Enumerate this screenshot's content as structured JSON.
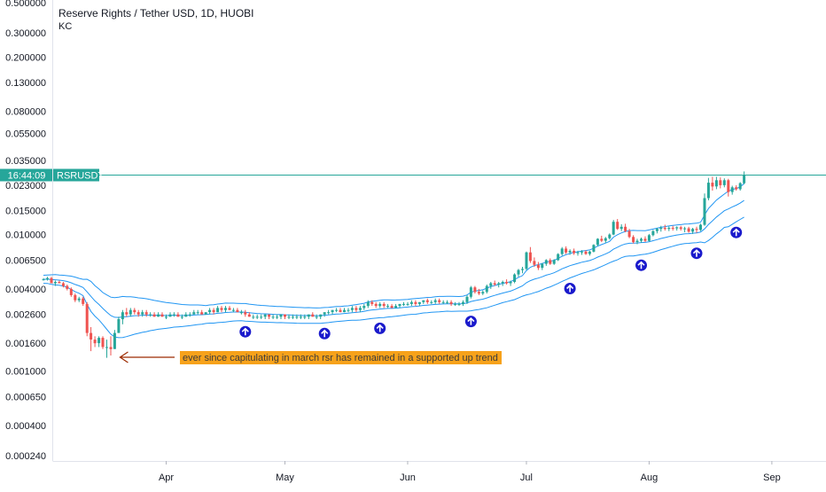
{
  "chart_data": {
    "type": "candlestick",
    "title": "Reserve Rights / Tether USD, 1D, HUOBI",
    "indicator": "KC",
    "symbol_label": "RSRUSDT",
    "time_label": "16:44:09",
    "y_scale": "log",
    "y_ticks": [
      "0.500000",
      "0.300000",
      "0.200000",
      "0.130000",
      "0.080000",
      "0.055000",
      "0.035000",
      "0.023000",
      "0.015000",
      "0.010000",
      "0.006500",
      "0.004000",
      "0.002600",
      "0.001600",
      "0.001000",
      "0.000650",
      "0.000400",
      "0.000240"
    ],
    "x_ticks": [
      "Apr",
      "May",
      "Jun",
      "Jul",
      "Aug",
      "Sep"
    ],
    "annotation": "ever since capitulating in march rsr has remained in a supported up trend",
    "last_price_line": 0.0275,
    "colors": {
      "up": "#26a69a",
      "down": "#ef5350",
      "keltner": "#2196f3",
      "annotation_bg": "#f7a21b",
      "arrow": "#9c2a00",
      "signal": "#1a1acc",
      "price_line": "#26a69a"
    },
    "ohlc": [
      [
        "2020-03-01",
        0.0047,
        0.0048,
        0.0046,
        0.0047
      ],
      [
        "2020-03-02",
        0.0047,
        0.0049,
        0.0046,
        0.0048
      ],
      [
        "2020-03-03",
        0.0048,
        0.0049,
        0.0044,
        0.0044
      ],
      [
        "2020-03-04",
        0.0044,
        0.0046,
        0.0042,
        0.0045
      ],
      [
        "2020-03-05",
        0.0045,
        0.0046,
        0.0044,
        0.0044
      ],
      [
        "2020-03-06",
        0.0044,
        0.0045,
        0.0041,
        0.0042
      ],
      [
        "2020-03-07",
        0.0042,
        0.0043,
        0.0039,
        0.004
      ],
      [
        "2020-03-08",
        0.004,
        0.0041,
        0.0035,
        0.0036
      ],
      [
        "2020-03-09",
        0.0036,
        0.0037,
        0.0032,
        0.0033
      ],
      [
        "2020-03-10",
        0.0033,
        0.0035,
        0.0032,
        0.0034
      ],
      [
        "2020-03-11",
        0.0034,
        0.0035,
        0.003,
        0.0031
      ],
      [
        "2020-03-12",
        0.0031,
        0.0032,
        0.0018,
        0.0019
      ],
      [
        "2020-03-13",
        0.0019,
        0.0021,
        0.0014,
        0.0017
      ],
      [
        "2020-03-14",
        0.0017,
        0.0018,
        0.0015,
        0.0016
      ],
      [
        "2020-03-15",
        0.0016,
        0.0018,
        0.0015,
        0.00175
      ],
      [
        "2020-03-16",
        0.00175,
        0.0018,
        0.00145,
        0.0015
      ],
      [
        "2020-03-17",
        0.0015,
        0.0017,
        0.00125,
        0.0015
      ],
      [
        "2020-03-18",
        0.0015,
        0.0018,
        0.0013,
        0.00145
      ],
      [
        "2020-03-19",
        0.00145,
        0.002,
        0.00145,
        0.0019
      ],
      [
        "2020-03-20",
        0.0019,
        0.0025,
        0.0019,
        0.0024
      ],
      [
        "2020-03-21",
        0.0024,
        0.0028,
        0.0022,
        0.0027
      ],
      [
        "2020-03-22",
        0.0027,
        0.0029,
        0.0025,
        0.0026
      ],
      [
        "2020-03-23",
        0.0026,
        0.0029,
        0.0025,
        0.0028
      ],
      [
        "2020-03-24",
        0.0028,
        0.0029,
        0.0026,
        0.0027
      ],
      [
        "2020-03-25",
        0.0027,
        0.0028,
        0.0025,
        0.0026
      ],
      [
        "2020-03-26",
        0.0026,
        0.0028,
        0.0025,
        0.0027
      ],
      [
        "2020-03-27",
        0.0027,
        0.0028,
        0.0025,
        0.0026
      ],
      [
        "2020-03-28",
        0.0026,
        0.0027,
        0.0025,
        0.0026
      ],
      [
        "2020-03-29",
        0.0026,
        0.0027,
        0.0025,
        0.0025
      ],
      [
        "2020-03-30",
        0.0025,
        0.0027,
        0.0025,
        0.0026
      ],
      [
        "2020-03-31",
        0.0026,
        0.0027,
        0.0025,
        0.0025
      ],
      [
        "2020-04-01",
        0.0025,
        0.0026,
        0.0024,
        0.0025
      ],
      [
        "2020-04-02",
        0.0025,
        0.0027,
        0.0025,
        0.0026
      ],
      [
        "2020-04-03",
        0.0026,
        0.0027,
        0.0025,
        0.0026
      ],
      [
        "2020-04-04",
        0.0026,
        0.0027,
        0.0025,
        0.0025
      ],
      [
        "2020-04-05",
        0.0025,
        0.0026,
        0.0024,
        0.0025
      ],
      [
        "2020-04-06",
        0.0025,
        0.0027,
        0.0025,
        0.0026
      ],
      [
        "2020-04-07",
        0.0026,
        0.0027,
        0.0025,
        0.0026
      ],
      [
        "2020-04-08",
        0.0026,
        0.0028,
        0.0026,
        0.0027
      ],
      [
        "2020-04-09",
        0.0027,
        0.0028,
        0.0026,
        0.0027
      ],
      [
        "2020-04-10",
        0.0027,
        0.0028,
        0.0026,
        0.0026
      ],
      [
        "2020-04-11",
        0.0026,
        0.0027,
        0.0026,
        0.0027
      ],
      [
        "2020-04-12",
        0.0027,
        0.0029,
        0.0026,
        0.0028
      ],
      [
        "2020-04-13",
        0.0028,
        0.0029,
        0.0026,
        0.0027
      ],
      [
        "2020-04-14",
        0.0027,
        0.003,
        0.0027,
        0.0029
      ],
      [
        "2020-04-15",
        0.0029,
        0.003,
        0.0027,
        0.0028
      ],
      [
        "2020-04-16",
        0.0028,
        0.003,
        0.0027,
        0.0029
      ],
      [
        "2020-04-17",
        0.0029,
        0.003,
        0.0028,
        0.0028
      ],
      [
        "2020-04-18",
        0.0028,
        0.0029,
        0.0027,
        0.0028
      ],
      [
        "2020-04-19",
        0.0028,
        0.0029,
        0.0027,
        0.0027
      ],
      [
        "2020-04-20",
        0.0027,
        0.0028,
        0.0026,
        0.0027
      ],
      [
        "2020-04-21",
        0.0027,
        0.0028,
        0.0025,
        0.0026
      ],
      [
        "2020-04-22",
        0.0026,
        0.0027,
        0.0025,
        0.0025
      ],
      [
        "2020-04-23",
        0.0025,
        0.0026,
        0.0024,
        0.0025
      ],
      [
        "2020-04-24",
        0.0025,
        0.0026,
        0.0024,
        0.0025
      ],
      [
        "2020-04-25",
        0.0025,
        0.0026,
        0.0024,
        0.0025
      ],
      [
        "2020-04-26",
        0.0025,
        0.0026,
        0.0024,
        0.0026
      ],
      [
        "2020-04-27",
        0.0026,
        0.0026,
        0.0024,
        0.0025
      ],
      [
        "2020-04-28",
        0.0025,
        0.0026,
        0.0024,
        0.0025
      ],
      [
        "2020-04-29",
        0.0025,
        0.0026,
        0.0024,
        0.0025
      ],
      [
        "2020-04-30",
        0.0025,
        0.0026,
        0.0024,
        0.0026
      ],
      [
        "2020-05-01",
        0.0026,
        0.0026,
        0.0024,
        0.0025
      ],
      [
        "2020-05-02",
        0.0025,
        0.0026,
        0.0024,
        0.0025
      ],
      [
        "2020-05-03",
        0.0025,
        0.0026,
        0.0024,
        0.0025
      ],
      [
        "2020-05-04",
        0.0025,
        0.0026,
        0.0024,
        0.0025
      ],
      [
        "2020-05-05",
        0.0025,
        0.0026,
        0.0024,
        0.0025
      ],
      [
        "2020-05-06",
        0.0025,
        0.0026,
        0.0024,
        0.0025
      ],
      [
        "2020-05-07",
        0.0025,
        0.0026,
        0.0024,
        0.0026
      ],
      [
        "2020-05-08",
        0.0026,
        0.0027,
        0.0025,
        0.0025
      ],
      [
        "2020-05-09",
        0.0025,
        0.0026,
        0.0024,
        0.0025
      ],
      [
        "2020-05-10",
        0.0025,
        0.0026,
        0.0024,
        0.0026
      ],
      [
        "2020-05-11",
        0.0026,
        0.0027,
        0.0025,
        0.0027
      ],
      [
        "2020-05-12",
        0.0027,
        0.0028,
        0.0026,
        0.0027
      ],
      [
        "2020-05-13",
        0.0027,
        0.0028,
        0.0026,
        0.0028
      ],
      [
        "2020-05-14",
        0.0028,
        0.0029,
        0.0027,
        0.0028
      ],
      [
        "2020-05-15",
        0.0028,
        0.0029,
        0.0027,
        0.0027
      ],
      [
        "2020-05-16",
        0.0027,
        0.0029,
        0.0027,
        0.0028
      ],
      [
        "2020-05-17",
        0.0028,
        0.0029,
        0.0027,
        0.0028
      ],
      [
        "2020-05-18",
        0.0028,
        0.003,
        0.0027,
        0.0029
      ],
      [
        "2020-05-19",
        0.0029,
        0.003,
        0.0027,
        0.0028
      ],
      [
        "2020-05-20",
        0.0028,
        0.003,
        0.0027,
        0.0029
      ],
      [
        "2020-05-21",
        0.0029,
        0.0031,
        0.0028,
        0.003
      ],
      [
        "2020-05-22",
        0.003,
        0.0033,
        0.0029,
        0.0032
      ],
      [
        "2020-05-23",
        0.0032,
        0.0033,
        0.003,
        0.0031
      ],
      [
        "2020-05-24",
        0.0031,
        0.0032,
        0.0029,
        0.003
      ],
      [
        "2020-05-25",
        0.003,
        0.0032,
        0.0029,
        0.0031
      ],
      [
        "2020-05-26",
        0.0031,
        0.0032,
        0.0029,
        0.003
      ],
      [
        "2020-05-27",
        0.003,
        0.0031,
        0.0029,
        0.003
      ],
      [
        "2020-05-28",
        0.003,
        0.0031,
        0.0029,
        0.0029
      ],
      [
        "2020-05-29",
        0.0029,
        0.0031,
        0.0029,
        0.003
      ],
      [
        "2020-05-30",
        0.003,
        0.0031,
        0.0029,
        0.0031
      ],
      [
        "2020-05-31",
        0.0031,
        0.0032,
        0.003,
        0.0031
      ],
      [
        "2020-06-01",
        0.0031,
        0.0032,
        0.003,
        0.0031
      ],
      [
        "2020-06-02",
        0.0031,
        0.0033,
        0.003,
        0.0032
      ],
      [
        "2020-06-03",
        0.0032,
        0.0033,
        0.003,
        0.0031
      ],
      [
        "2020-06-04",
        0.0031,
        0.0032,
        0.003,
        0.0032
      ],
      [
        "2020-06-05",
        0.0032,
        0.0033,
        0.0031,
        0.0033
      ],
      [
        "2020-06-06",
        0.0033,
        0.0034,
        0.0031,
        0.0032
      ],
      [
        "2020-06-07",
        0.0032,
        0.0033,
        0.0031,
        0.0032
      ],
      [
        "2020-06-08",
        0.0032,
        0.0034,
        0.0031,
        0.0033
      ],
      [
        "2020-06-09",
        0.0033,
        0.0034,
        0.0031,
        0.0032
      ],
      [
        "2020-06-10",
        0.0032,
        0.0033,
        0.0031,
        0.0032
      ],
      [
        "2020-06-11",
        0.0032,
        0.0033,
        0.0031,
        0.0032
      ],
      [
        "2020-06-12",
        0.0032,
        0.0033,
        0.003,
        0.0031
      ],
      [
        "2020-06-13",
        0.0031,
        0.0032,
        0.003,
        0.0031
      ],
      [
        "2020-06-14",
        0.0031,
        0.0032,
        0.003,
        0.0031
      ],
      [
        "2020-06-15",
        0.0031,
        0.0033,
        0.003,
        0.0032
      ],
      [
        "2020-06-16",
        0.0032,
        0.0036,
        0.0031,
        0.0035
      ],
      [
        "2020-06-17",
        0.0035,
        0.0042,
        0.0034,
        0.0041
      ],
      [
        "2020-06-18",
        0.0041,
        0.0042,
        0.0037,
        0.0038
      ],
      [
        "2020-06-19",
        0.0038,
        0.004,
        0.0036,
        0.0037
      ],
      [
        "2020-06-20",
        0.0037,
        0.0039,
        0.0036,
        0.0038
      ],
      [
        "2020-06-21",
        0.0038,
        0.0043,
        0.0037,
        0.0042
      ],
      [
        "2020-06-22",
        0.0042,
        0.0045,
        0.004,
        0.0044
      ],
      [
        "2020-06-23",
        0.0044,
        0.0046,
        0.0042,
        0.0043
      ],
      [
        "2020-06-24",
        0.0043,
        0.0045,
        0.0041,
        0.0044
      ],
      [
        "2020-06-25",
        0.0044,
        0.0046,
        0.0042,
        0.0045
      ],
      [
        "2020-06-26",
        0.0045,
        0.0047,
        0.0043,
        0.0044
      ],
      [
        "2020-06-27",
        0.0044,
        0.0046,
        0.0042,
        0.0045
      ],
      [
        "2020-06-28",
        0.0045,
        0.0052,
        0.0044,
        0.0051
      ],
      [
        "2020-06-29",
        0.0051,
        0.0056,
        0.0049,
        0.0055
      ],
      [
        "2020-06-30",
        0.0055,
        0.0058,
        0.0052,
        0.0056
      ],
      [
        "2020-07-01",
        0.0056,
        0.0075,
        0.0055,
        0.0074
      ],
      [
        "2020-07-02",
        0.0074,
        0.0081,
        0.0062,
        0.0064
      ],
      [
        "2020-07-03",
        0.0064,
        0.0068,
        0.0058,
        0.006
      ],
      [
        "2020-07-04",
        0.006,
        0.0063,
        0.0055,
        0.0057
      ],
      [
        "2020-07-05",
        0.0057,
        0.0062,
        0.0055,
        0.0061
      ],
      [
        "2020-07-06",
        0.0061,
        0.0066,
        0.0059,
        0.0065
      ],
      [
        "2020-07-07",
        0.0065,
        0.0067,
        0.006,
        0.0061
      ],
      [
        "2020-07-08",
        0.0061,
        0.0066,
        0.006,
        0.0065
      ],
      [
        "2020-07-09",
        0.0065,
        0.0073,
        0.0064,
        0.0072
      ],
      [
        "2020-07-10",
        0.0072,
        0.0081,
        0.007,
        0.0079
      ],
      [
        "2020-07-11",
        0.0079,
        0.0082,
        0.0072,
        0.0074
      ],
      [
        "2020-07-12",
        0.0074,
        0.0078,
        0.0071,
        0.0076
      ],
      [
        "2020-07-13",
        0.0076,
        0.0079,
        0.0071,
        0.0073
      ],
      [
        "2020-07-14",
        0.0073,
        0.0076,
        0.007,
        0.0074
      ],
      [
        "2020-07-15",
        0.0074,
        0.0077,
        0.0071,
        0.0075
      ],
      [
        "2020-07-16",
        0.0075,
        0.0077,
        0.0071,
        0.0072
      ],
      [
        "2020-07-17",
        0.0072,
        0.0076,
        0.007,
        0.0075
      ],
      [
        "2020-07-18",
        0.0075,
        0.0085,
        0.0074,
        0.0084
      ],
      [
        "2020-07-19",
        0.0084,
        0.0094,
        0.0082,
        0.0093
      ],
      [
        "2020-07-20",
        0.0093,
        0.0098,
        0.0088,
        0.009
      ],
      [
        "2020-07-21",
        0.009,
        0.0096,
        0.0087,
        0.0094
      ],
      [
        "2020-07-22",
        0.0094,
        0.0102,
        0.0092,
        0.01
      ],
      [
        "2020-07-23",
        0.01,
        0.0128,
        0.0099,
        0.0124
      ],
      [
        "2020-07-24",
        0.0124,
        0.013,
        0.0108,
        0.011
      ],
      [
        "2020-07-25",
        0.011,
        0.0119,
        0.0106,
        0.0114
      ],
      [
        "2020-07-26",
        0.0114,
        0.012,
        0.0104,
        0.0106
      ],
      [
        "2020-07-27",
        0.0106,
        0.011,
        0.0094,
        0.0096
      ],
      [
        "2020-07-28",
        0.0096,
        0.0099,
        0.0086,
        0.0088
      ],
      [
        "2020-07-29",
        0.0088,
        0.0093,
        0.0085,
        0.009
      ],
      [
        "2020-07-30",
        0.009,
        0.0095,
        0.0087,
        0.0093
      ],
      [
        "2020-07-31",
        0.0093,
        0.0097,
        0.0088,
        0.009
      ],
      [
        "2020-08-01",
        0.009,
        0.0101,
        0.0089,
        0.0099
      ],
      [
        "2020-08-02",
        0.0099,
        0.0108,
        0.0097,
        0.0106
      ],
      [
        "2020-08-03",
        0.0106,
        0.0112,
        0.0102,
        0.011
      ],
      [
        "2020-08-04",
        0.011,
        0.0116,
        0.0105,
        0.0112
      ],
      [
        "2020-08-05",
        0.0112,
        0.0118,
        0.0107,
        0.011
      ],
      [
        "2020-08-06",
        0.011,
        0.0115,
        0.0106,
        0.0112
      ],
      [
        "2020-08-07",
        0.0112,
        0.0116,
        0.0107,
        0.0111
      ],
      [
        "2020-08-08",
        0.0111,
        0.0115,
        0.0107,
        0.0113
      ],
      [
        "2020-08-09",
        0.0113,
        0.0116,
        0.0107,
        0.011
      ],
      [
        "2020-08-10",
        0.011,
        0.0114,
        0.0104,
        0.0111
      ],
      [
        "2020-08-11",
        0.0111,
        0.0114,
        0.0103,
        0.0105
      ],
      [
        "2020-08-12",
        0.0105,
        0.0112,
        0.0101,
        0.011
      ],
      [
        "2020-08-13",
        0.011,
        0.0114,
        0.0103,
        0.0108
      ],
      [
        "2020-08-14",
        0.0108,
        0.012,
        0.0106,
        0.0118
      ],
      [
        "2020-08-15",
        0.0118,
        0.02,
        0.0116,
        0.0185
      ],
      [
        "2020-08-16",
        0.0185,
        0.026,
        0.0178,
        0.024
      ],
      [
        "2020-08-17",
        0.024,
        0.0265,
        0.021,
        0.0225
      ],
      [
        "2020-08-18",
        0.0225,
        0.0265,
        0.0215,
        0.025
      ],
      [
        "2020-08-19",
        0.025,
        0.0262,
        0.0218,
        0.023
      ],
      [
        "2020-08-20",
        0.023,
        0.0258,
        0.0222,
        0.025
      ],
      [
        "2020-08-21",
        0.025,
        0.0256,
        0.019,
        0.0205
      ],
      [
        "2020-08-22",
        0.0205,
        0.0228,
        0.0196,
        0.0222
      ],
      [
        "2020-08-23",
        0.0222,
        0.023,
        0.021,
        0.0215
      ],
      [
        "2020-08-24",
        0.0215,
        0.0242,
        0.021,
        0.0238
      ],
      [
        "2020-08-25",
        0.0238,
        0.029,
        0.0234,
        0.0275
      ]
    ],
    "signal_dates": [
      "2020-04-21",
      "2020-05-11",
      "2020-05-25",
      "2020-06-17",
      "2020-07-12",
      "2020-07-30",
      "2020-08-13",
      "2020-08-23"
    ]
  }
}
